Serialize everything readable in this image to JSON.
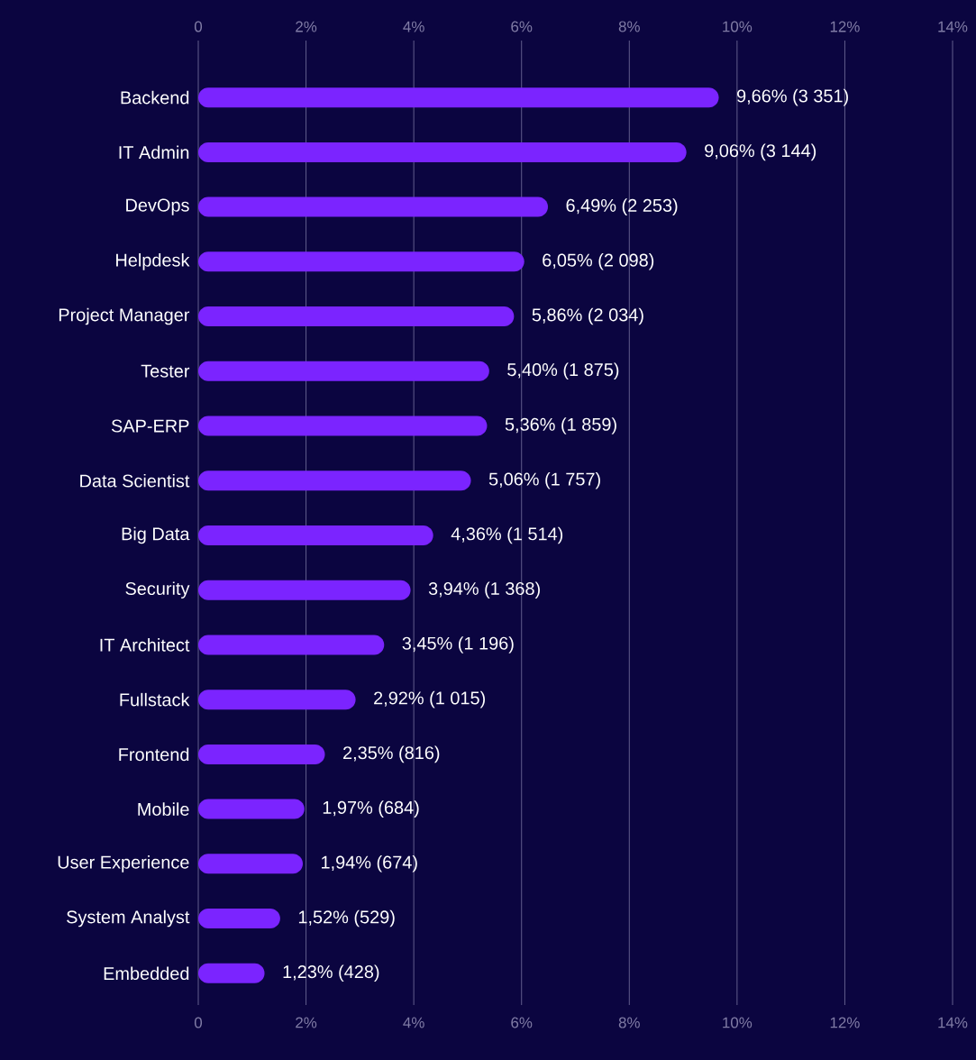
{
  "chart_data": {
    "type": "bar",
    "orientation": "horizontal",
    "categories": [
      "Backend",
      "IT Admin",
      "DevOps",
      "Helpdesk",
      "Project Manager",
      "Tester",
      "SAP-ERP",
      "Data Scientist",
      "Big Data",
      "Security",
      "IT Architect",
      "Fullstack",
      "Frontend",
      "Mobile",
      "User Experience",
      "System Analyst",
      "Embedded"
    ],
    "values": [
      9.66,
      9.06,
      6.49,
      6.05,
      5.86,
      5.4,
      5.36,
      5.06,
      4.36,
      3.94,
      3.45,
      2.92,
      2.35,
      1.97,
      1.94,
      1.52,
      1.23
    ],
    "value_labels": [
      "9,66% (3 351)",
      "9,06% (3 144)",
      "6,49% (2 253)",
      "6,05% (2 098)",
      "5,86% (2 034)",
      "5,40% (1 875)",
      "5,36% (1 859)",
      "5,06% (1 757)",
      "4,36% (1 514)",
      "3,94% (1 368)",
      "3,45% (1 196)",
      "2,92% (1 015)",
      "2,35% (816)",
      "1,97% (684)",
      "1,94% (674)",
      "1,52% (529)",
      "1,23% (428)"
    ],
    "color": "#7b24ff",
    "xlim": [
      0,
      14
    ],
    "xticks": [
      0,
      {
        "value": 2,
        "label": "2%"
      },
      {
        "value": 4,
        "label": "4%"
      },
      {
        "value": 6,
        "label": "6%"
      },
      {
        "value": 8,
        "label": "8%"
      },
      {
        "value": 10,
        "label": "10%"
      },
      {
        "value": 12,
        "label": "12%"
      },
      {
        "value": 14,
        "label": "14%"
      }
    ],
    "x2lim": [
      0,
      14
    ],
    "x2ticks": [
      0,
      {
        "value": 2,
        "label": "2%"
      },
      {
        "value": 4,
        "label": "4%"
      },
      {
        "value": 6,
        "label": "6%"
      },
      {
        "value": 8,
        "label": "8%"
      },
      {
        "value": 10,
        "label": "10%"
      },
      {
        "value": 12,
        "label": "12%"
      },
      {
        "value": 14,
        "label": "14%"
      }
    ],
    "grid": "x"
  }
}
